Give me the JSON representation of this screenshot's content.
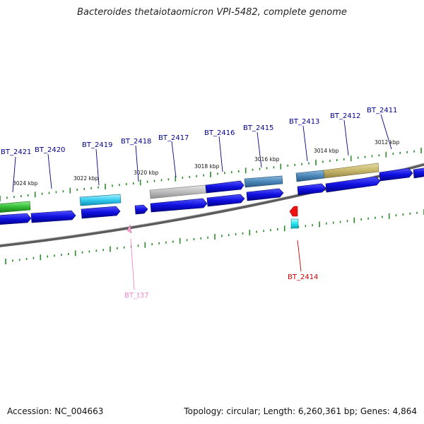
{
  "header": {
    "title": "Bacteroides thetaiotaomicron VPI-5482, complete genome"
  },
  "footer": {
    "accession": "Accession: NC_004663",
    "summary": "Topology: circular; Length: 6,260,361 bp; Genes: 4,864"
  },
  "scale_labels": [
    "3024 kbp",
    "3022 kbp",
    "3020 kbp",
    "3018 kbp",
    "3016 kbp",
    "3014 kbp",
    "3012 kbp"
  ],
  "genes": [
    {
      "name": "BT_2421",
      "color": "#00008b"
    },
    {
      "name": "BT_2420",
      "color": "#00008b"
    },
    {
      "name": "BT_2419",
      "color": "#00008b"
    },
    {
      "name": "BT_2418",
      "color": "#00008b"
    },
    {
      "name": "BT_2417",
      "color": "#00008b"
    },
    {
      "name": "BT_2416",
      "color": "#00008b"
    },
    {
      "name": "BT_2415",
      "color": "#00008b"
    },
    {
      "name": "BT_2413",
      "color": "#00008b"
    },
    {
      "name": "BT_2412",
      "color": "#00008b"
    },
    {
      "name": "BT_2411",
      "color": "#00008b"
    },
    {
      "name": "BT_2414",
      "color": "#cc0000"
    },
    {
      "name": "BT_t37",
      "color": "#ee88cc"
    }
  ],
  "colors": {
    "backbone": "#7a7a7a",
    "cds_blue": "#1010e0",
    "tick_green": "#2a8a2a",
    "green_feature": "#33bb33",
    "cyan_feature": "#33ccee",
    "steel_feature": "#4a86b8",
    "khaki_feature": "#c6b66a",
    "gray_feature": "#b8b8b8",
    "red_gene": "#ee1111",
    "pink_trna": "#f2a0cc"
  }
}
